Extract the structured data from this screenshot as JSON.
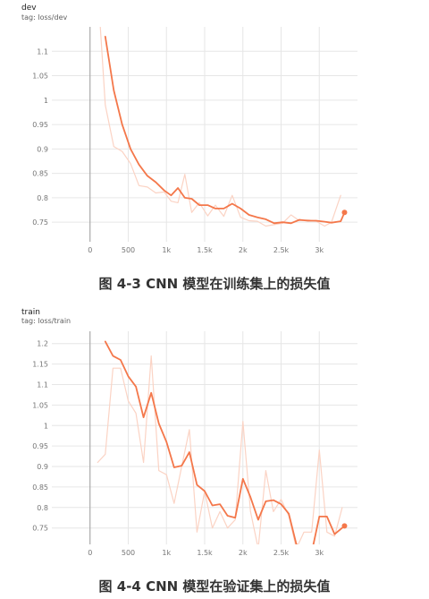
{
  "colors": {
    "smoothed": "#f4774a",
    "raw": "#fbd3c4",
    "grid": "#e6e6e6",
    "axis": "#9e9e9e"
  },
  "captions": {
    "dev": "图 4-3 CNN 模型在训练集上的损失值",
    "train": "图 4-4 CNN 模型在验证集上的损失值"
  },
  "chart_data": [
    {
      "type": "line",
      "run": "dev",
      "tag": "tag: loss/dev",
      "xlim": [
        -500,
        3500
      ],
      "ylim": [
        0.71,
        1.15
      ],
      "x_ticks": [
        0,
        500,
        1000,
        1500,
        2000,
        2500,
        3000
      ],
      "x_tick_labels": [
        "0",
        "500",
        "1k",
        "1.5k",
        "2k",
        "2.5k",
        "3k"
      ],
      "y_ticks": [
        0.75,
        0.8,
        0.85,
        0.9,
        0.95,
        1,
        1.05,
        1.1
      ],
      "y_tick_labels": [
        "0.75",
        "0.8",
        "0.85",
        "0.9",
        "0.95",
        "1",
        "1.05",
        "1.1"
      ],
      "grid": true,
      "series": [
        {
          "style": "raw",
          "x": [
            90,
            200,
            310,
            420,
            530,
            640,
            750,
            860,
            970,
            1060,
            1150,
            1240,
            1330,
            1430,
            1540,
            1640,
            1750,
            1860,
            1970,
            2080,
            2190,
            2300,
            2410,
            2520,
            2630,
            2740,
            2850,
            2960,
            3070,
            3160,
            3280
          ],
          "y": [
            1.26,
            0.99,
            0.905,
            0.895,
            0.87,
            0.825,
            0.822,
            0.81,
            0.812,
            0.793,
            0.79,
            0.848,
            0.77,
            0.79,
            0.763,
            0.785,
            0.762,
            0.805,
            0.76,
            0.753,
            0.752,
            0.742,
            0.745,
            0.748,
            0.765,
            0.753,
            0.755,
            0.752,
            0.742,
            0.75,
            0.805
          ]
        },
        {
          "style": "smoothed",
          "x": [
            200,
            310,
            420,
            530,
            640,
            750,
            860,
            970,
            1060,
            1150,
            1240,
            1330,
            1430,
            1540,
            1640,
            1750,
            1860,
            1970,
            2080,
            2190,
            2300,
            2410,
            2520,
            2630,
            2740,
            2850,
            2960,
            3070,
            3160,
            3280,
            3330
          ],
          "y": [
            1.13,
            1.02,
            0.95,
            0.9,
            0.868,
            0.845,
            0.832,
            0.815,
            0.805,
            0.82,
            0.8,
            0.798,
            0.785,
            0.785,
            0.778,
            0.778,
            0.788,
            0.778,
            0.765,
            0.76,
            0.756,
            0.748,
            0.75,
            0.748,
            0.755,
            0.753,
            0.753,
            0.751,
            0.749,
            0.752,
            0.77
          ]
        }
      ],
      "end_point": {
        "x": 3330,
        "y": 0.77
      }
    },
    {
      "type": "line",
      "run": "train",
      "tag": "tag: loss/train",
      "xlim": [
        -500,
        3500
      ],
      "ylim": [
        0.71,
        1.23
      ],
      "x_ticks": [
        0,
        500,
        1000,
        1500,
        2000,
        2500,
        3000
      ],
      "x_tick_labels": [
        "0",
        "500",
        "1k",
        "1.5k",
        "2k",
        "2.5k",
        "3k"
      ],
      "y_ticks": [
        0.75,
        0.8,
        0.85,
        0.9,
        0.95,
        1,
        1.05,
        1.1,
        1.15,
        1.2
      ],
      "y_tick_labels": [
        "0.75",
        "0.8",
        "0.85",
        "0.9",
        "0.95",
        "1",
        "1.05",
        "1.1",
        "1.15",
        "1.2"
      ],
      "grid": true,
      "series": [
        {
          "style": "raw",
          "x": [
            100,
            200,
            300,
            400,
            500,
            600,
            700,
            800,
            900,
            1000,
            1100,
            1200,
            1300,
            1400,
            1500,
            1600,
            1700,
            1800,
            1900,
            2000,
            2100,
            2200,
            2300,
            2400,
            2500,
            2600,
            2700,
            2800,
            2900,
            3000,
            3100,
            3200,
            3300
          ],
          "y": [
            0.91,
            0.93,
            1.14,
            1.14,
            1.06,
            1.03,
            0.91,
            1.17,
            0.89,
            0.88,
            0.81,
            0.9,
            0.99,
            0.74,
            0.84,
            0.75,
            0.79,
            0.75,
            0.77,
            1.01,
            0.79,
            0.7,
            0.89,
            0.79,
            0.82,
            0.78,
            0.7,
            0.74,
            0.74,
            0.94,
            0.74,
            0.73,
            0.8
          ]
        },
        {
          "style": "smoothed",
          "x": [
            200,
            300,
            400,
            500,
            600,
            700,
            800,
            900,
            1000,
            1100,
            1200,
            1300,
            1400,
            1500,
            1600,
            1700,
            1800,
            1900,
            2000,
            2100,
            2200,
            2300,
            2400,
            2500,
            2600,
            2700,
            2800,
            2900,
            3000,
            3100,
            3200,
            3330
          ],
          "y": [
            1.205,
            1.17,
            1.16,
            1.12,
            1.095,
            1.02,
            1.08,
            1.005,
            0.96,
            0.898,
            0.902,
            0.935,
            0.855,
            0.84,
            0.805,
            0.808,
            0.78,
            0.775,
            0.87,
            0.825,
            0.77,
            0.815,
            0.818,
            0.808,
            0.785,
            0.71,
            0.7,
            0.69,
            0.778,
            0.778,
            0.735,
            0.755
          ]
        }
      ],
      "end_point": {
        "x": 3330,
        "y": 0.755
      }
    }
  ]
}
